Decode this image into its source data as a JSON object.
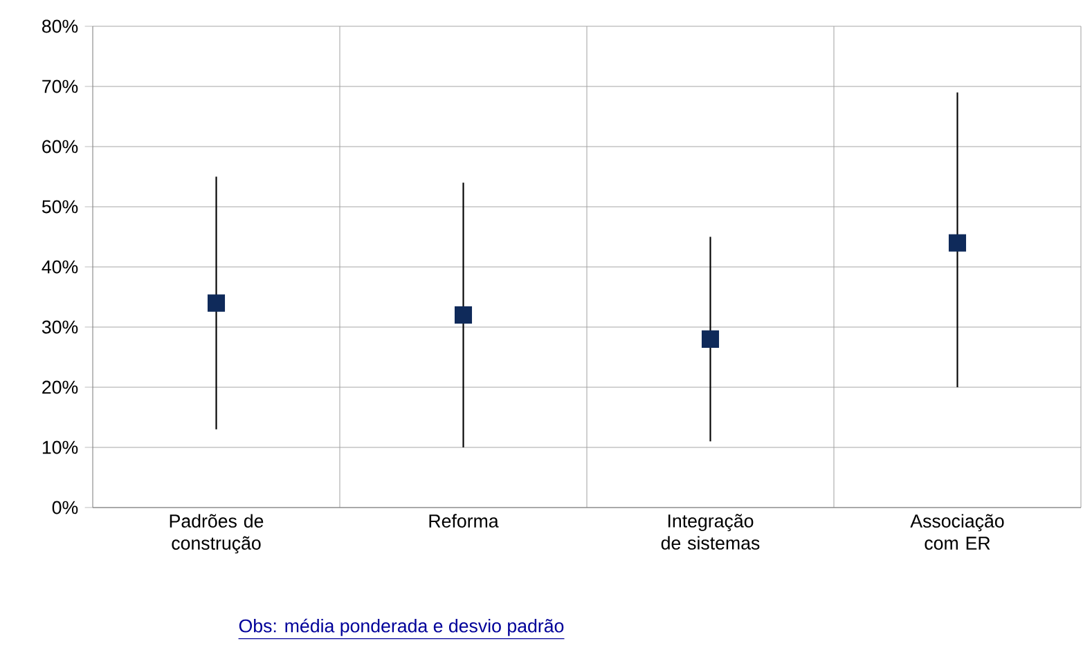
{
  "chart_data": {
    "type": "scatter",
    "categories": [
      "Padrões de construção",
      "Reforma",
      "Integração de sistemas",
      "Associação com ER"
    ],
    "values": [
      34,
      32,
      28,
      44
    ],
    "errors": [
      [
        13,
        55
      ],
      [
        10,
        54
      ],
      [
        11,
        45
      ],
      [
        20,
        69
      ]
    ],
    "color": "#0f2a5a",
    "marker": "square",
    "grid": true,
    "ylim": [
      0,
      80
    ],
    "yticks": [
      {
        "value": 0,
        "label": "0%"
      },
      {
        "value": 10,
        "label": "10%"
      },
      {
        "value": 20,
        "label": "20%"
      },
      {
        "value": 30,
        "label": "30%"
      },
      {
        "value": 40,
        "label": "40%"
      },
      {
        "value": 50,
        "label": "50%"
      },
      {
        "value": 60,
        "label": "60%"
      },
      {
        "value": 70,
        "label": "70%"
      },
      {
        "value": 80,
        "label": "80%"
      }
    ],
    "annotations": [
      "Obs: média ponderada e desvio padrão"
    ]
  }
}
